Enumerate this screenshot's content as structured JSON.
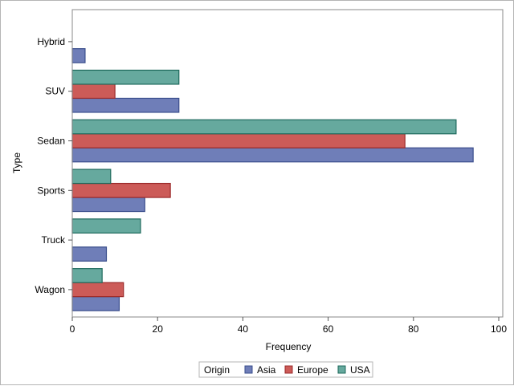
{
  "chart_data": {
    "type": "bar",
    "orientation": "horizontal",
    "categories": [
      "Hybrid",
      "SUV",
      "Sedan",
      "Sports",
      "Truck",
      "Wagon"
    ],
    "series": [
      {
        "name": "Asia",
        "color": "#6f7eb8",
        "stroke": "#3a4e8c",
        "values": [
          3,
          25,
          94,
          17,
          8,
          11
        ]
      },
      {
        "name": "Europe",
        "color": "#cc5b58",
        "stroke": "#9b2b2b",
        "values": [
          0,
          10,
          78,
          23,
          0,
          12
        ]
      },
      {
        "name": "USA",
        "color": "#66a99e",
        "stroke": "#1e6a5c",
        "values": [
          0,
          25,
          90,
          9,
          16,
          7
        ]
      }
    ],
    "xlabel": "Frequency",
    "ylabel": "Type",
    "xlim": [
      0,
      100
    ],
    "xticks": [
      0,
      20,
      40,
      60,
      80,
      100
    ],
    "grid": false,
    "legend": {
      "title": "Origin",
      "placement": "bottom-center"
    }
  }
}
